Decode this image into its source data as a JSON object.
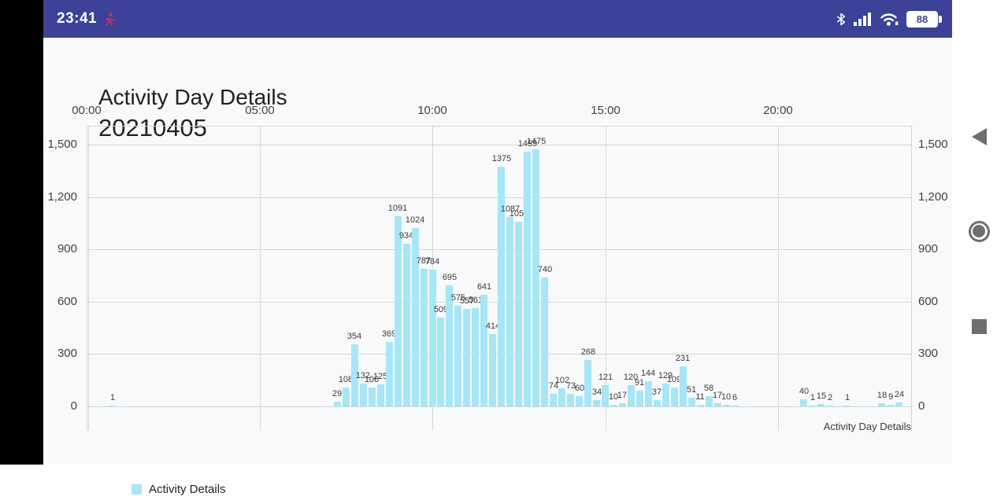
{
  "status_bar": {
    "time": "23:41",
    "battery_percent": "88",
    "icons": [
      "activity-notification-icon",
      "bluetooth-icon",
      "cell-signal-icon",
      "wifi-icon",
      "battery-icon"
    ],
    "notification_icon_color": "#dd2e57",
    "background_color": "#3b4298"
  },
  "header": {
    "title": "Activity Day Details",
    "subtitle": "20210405"
  },
  "chart": {
    "x_axis_labels": [
      "00:00",
      "05:00",
      "10:00",
      "15:00",
      "20:00"
    ],
    "y_axis_labels": [
      "0",
      "300",
      "600",
      "900",
      "1,200",
      "1,500"
    ],
    "y_axis_values": [
      0,
      300,
      600,
      900,
      1200,
      1500
    ],
    "legend_label": "Activity Details",
    "description_label": "Activity Day Details",
    "bar_color": "#a6e6f6",
    "grid_color": "#d6d6d6"
  },
  "chart_data": {
    "type": "bar",
    "title": "Activity Day Details",
    "subtitle": "20210405",
    "legend": "Activity Details",
    "bin_minutes": 15,
    "x": [
      "00:45",
      "07:15",
      "07:30",
      "07:45",
      "08:00",
      "08:15",
      "08:30",
      "08:45",
      "09:00",
      "09:15",
      "09:30",
      "09:45",
      "10:00",
      "10:15",
      "10:30",
      "10:45",
      "11:00",
      "11:15",
      "11:30",
      "11:45",
      "12:00",
      "12:15",
      "12:30",
      "12:45",
      "13:00",
      "13:15",
      "13:30",
      "13:45",
      "14:00",
      "14:15",
      "14:30",
      "14:45",
      "15:00",
      "15:15",
      "15:30",
      "15:45",
      "16:00",
      "16:15",
      "16:30",
      "16:45",
      "17:00",
      "17:15",
      "17:30",
      "17:45",
      "18:00",
      "18:15",
      "18:30",
      "18:45",
      "20:45",
      "21:00",
      "21:15",
      "21:30",
      "22:00",
      "23:00",
      "23:15",
      "23:30"
    ],
    "values": [
      1,
      29,
      108,
      354,
      132,
      106,
      125,
      369,
      1091,
      934,
      1024,
      787,
      784,
      509,
      695,
      575,
      557,
      561,
      641,
      414,
      1375,
      1087,
      1059,
      1459,
      1475,
      740,
      74,
      102,
      73,
      60,
      268,
      34,
      121,
      10,
      17,
      120,
      91,
      144,
      37,
      129,
      109,
      231,
      51,
      11,
      58,
      17,
      10,
      6,
      40,
      1,
      15,
      2,
      1,
      18,
      9,
      24
    ],
    "x_axis_range": [
      "00:00",
      "24:00"
    ],
    "y_tick_step": 300,
    "ylim": [
      0,
      1610
    ],
    "grid": true,
    "value_labels_shown": true,
    "legend_position": "bottom-left"
  },
  "nav_bar": {
    "icons": [
      "back-icon",
      "home-icon",
      "recents-icon"
    ]
  }
}
